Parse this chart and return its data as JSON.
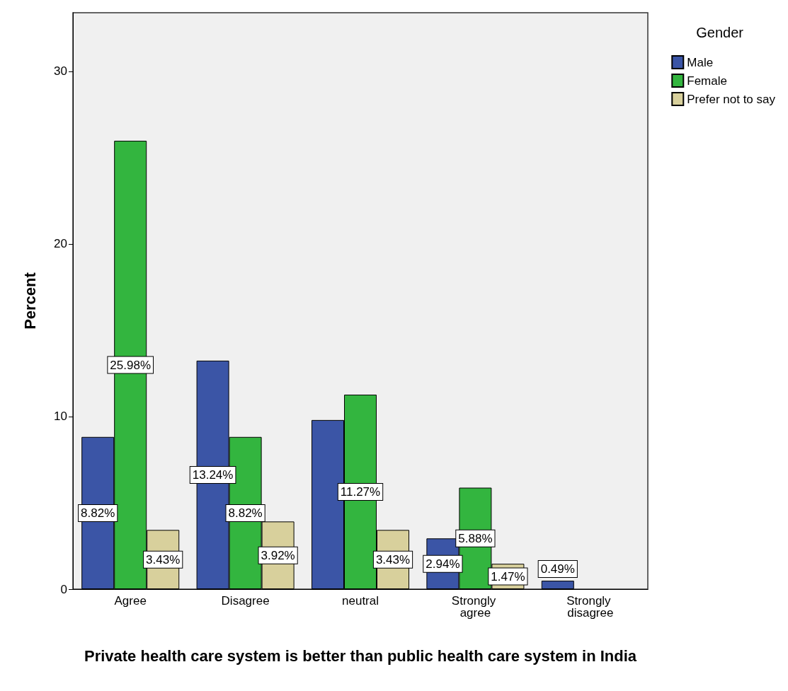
{
  "chart_data": {
    "type": "bar",
    "xlabel": "Private health care system is better than public health care system in India",
    "ylabel": "Percent",
    "legend_title": "Gender",
    "categories": [
      "Agree",
      "Disagree",
      "neutral",
      "Strongly agree",
      "Strongly disagree"
    ],
    "series": [
      {
        "name": "Male",
        "color": "#3b55a6",
        "values": [
          8.82,
          13.24,
          9.8,
          2.94,
          0.49
        ],
        "value_labels": [
          "8.82%",
          "13.24%",
          null,
          "2.94%",
          "0.49%"
        ]
      },
      {
        "name": "Female",
        "color": "#33b53f",
        "values": [
          25.98,
          8.82,
          11.27,
          5.88,
          null
        ],
        "value_labels": [
          "25.98%",
          "8.82%",
          "11.27%",
          "5.88%",
          null
        ]
      },
      {
        "name": "Prefer not to say",
        "color": "#d8d09c",
        "values": [
          3.43,
          3.92,
          3.43,
          1.47,
          null
        ],
        "value_labels": [
          "3.43%",
          "3.92%",
          "3.43%",
          "1.47%",
          null
        ]
      }
    ],
    "ylim": [
      0,
      33.4
    ],
    "yticks": [
      0,
      10,
      20,
      30
    ],
    "grid": false,
    "legend": "top right"
  }
}
